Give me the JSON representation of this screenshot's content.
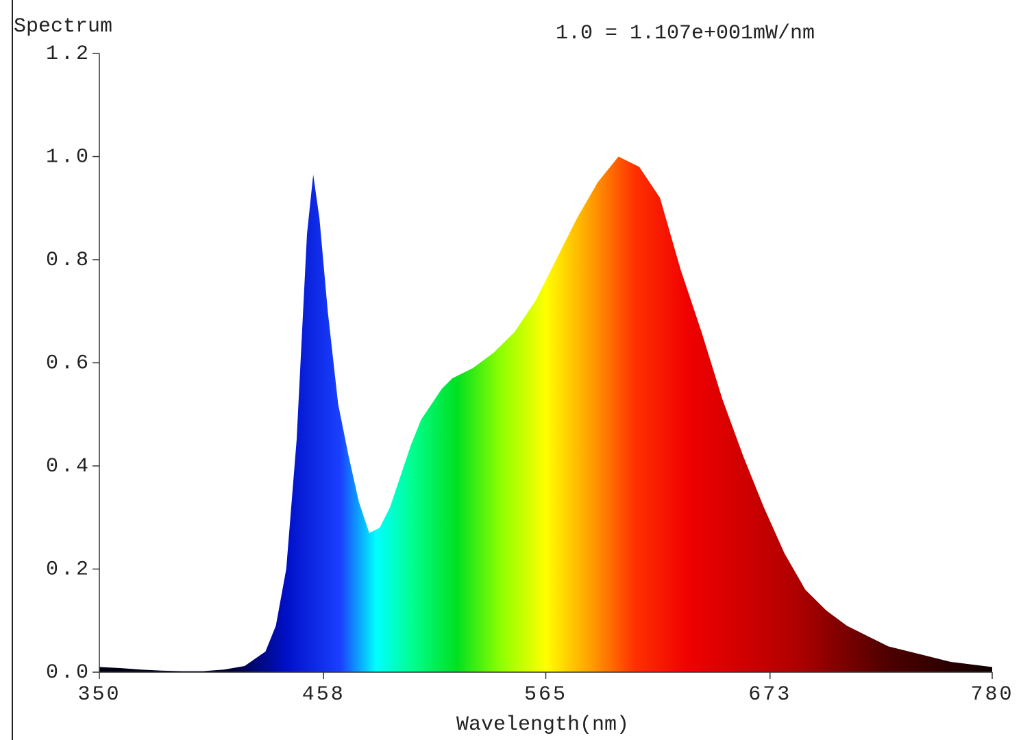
{
  "chart_data": {
    "type": "area",
    "title": "Spectrum",
    "annotation": "1.0 = 1.107e+001mW/nm",
    "x_label": "Wavelength(nm)",
    "x": [
      350,
      360,
      370,
      380,
      390,
      400,
      410,
      420,
      430,
      435,
      440,
      445,
      450,
      453,
      456,
      460,
      465,
      470,
      475,
      480,
      485,
      490,
      495,
      500,
      505,
      510,
      515,
      520,
      530,
      540,
      550,
      560,
      570,
      580,
      590,
      600,
      610,
      620,
      630,
      640,
      650,
      660,
      670,
      680,
      690,
      700,
      710,
      720,
      730,
      740,
      750,
      760,
      770,
      780
    ],
    "values": [
      0.01,
      0.008,
      0.005,
      0.003,
      0.002,
      0.002,
      0.005,
      0.012,
      0.04,
      0.09,
      0.2,
      0.45,
      0.85,
      0.965,
      0.88,
      0.7,
      0.52,
      0.42,
      0.33,
      0.27,
      0.28,
      0.32,
      0.38,
      0.44,
      0.49,
      0.52,
      0.55,
      0.57,
      0.59,
      0.62,
      0.66,
      0.72,
      0.8,
      0.88,
      0.95,
      1.0,
      0.98,
      0.92,
      0.78,
      0.66,
      0.53,
      0.42,
      0.32,
      0.23,
      0.16,
      0.12,
      0.09,
      0.07,
      0.05,
      0.04,
      0.03,
      0.02,
      0.015,
      0.01
    ],
    "xlim": [
      350,
      780
    ],
    "xticks": [
      350,
      458,
      565,
      673,
      780
    ],
    "ylim": [
      0,
      1.2
    ],
    "yticks": [
      {
        "value": 0,
        "label": "0.0"
      },
      0.2,
      0.4,
      0.6,
      0.8,
      {
        "value": 1,
        "label": "1.0"
      },
      1.2
    ],
    "grid": false
  }
}
